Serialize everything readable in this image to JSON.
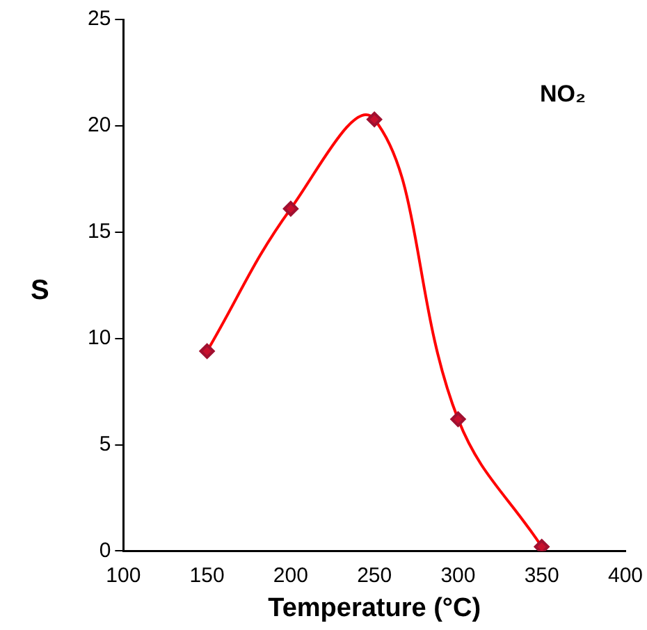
{
  "chart_data": {
    "type": "line",
    "xlabel": "Temperature (°C)",
    "ylabel": "S",
    "annotations": [
      "NO₂"
    ],
    "x": [
      150,
      200,
      250,
      300,
      350
    ],
    "series": [
      {
        "color": "#ff0000",
        "values": [
          9.4,
          16.1,
          20.3,
          6.2,
          0.2
        ]
      }
    ],
    "xlim": [
      100,
      400
    ],
    "xticks": [
      100,
      150,
      200,
      250,
      300,
      350,
      400
    ],
    "ylim": [
      0,
      25
    ],
    "yticks": [
      0,
      5,
      10,
      15,
      20,
      25
    ],
    "grid": false,
    "legend": false,
    "marker": "diamond",
    "line_style": "solid"
  }
}
